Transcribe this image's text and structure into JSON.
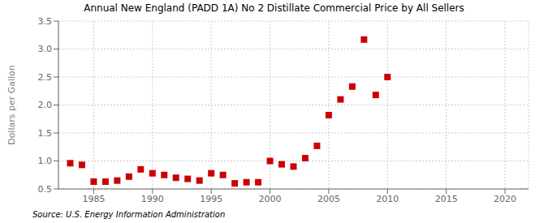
{
  "chart_data": {
    "type": "scatter",
    "title": "Annual New England (PADD 1A) No 2 Distillate Commercial Price by All Sellers",
    "ylabel": "Dollars per Gallon",
    "annotations": [
      "Source: U.S. Energy Information Administration"
    ],
    "color": "#cc0000",
    "marker": "square",
    "grid": true,
    "xlim": [
      1982,
      2022
    ],
    "ylim": [
      0.5,
      3.5
    ],
    "xticks": [
      1985,
      1990,
      1995,
      2000,
      2005,
      2010,
      2015,
      2020
    ],
    "yticks": [
      0.5,
      {
        "value": 1,
        "label": "1.0"
      },
      1.5,
      {
        "value": 2,
        "label": "2.0"
      },
      2.5,
      {
        "value": 3,
        "label": "3.0"
      },
      3.5
    ],
    "x": [
      1983,
      1984,
      1985,
      1986,
      1987,
      1988,
      1989,
      1990,
      1991,
      1992,
      1993,
      1994,
      1995,
      1996,
      1997,
      1998,
      1999,
      2000,
      2001,
      2002,
      2003,
      2004,
      2005,
      2006,
      2007,
      2008,
      2009,
      2010
    ],
    "values": [
      0.96,
      0.93,
      0.63,
      0.63,
      0.65,
      0.72,
      0.85,
      0.78,
      0.75,
      0.7,
      0.68,
      0.65,
      0.78,
      0.75,
      0.6,
      0.62,
      0.62,
      1.0,
      0.94,
      0.9,
      1.05,
      1.27,
      1.82,
      2.1,
      2.33,
      3.17,
      2.18,
      2.5
    ]
  }
}
